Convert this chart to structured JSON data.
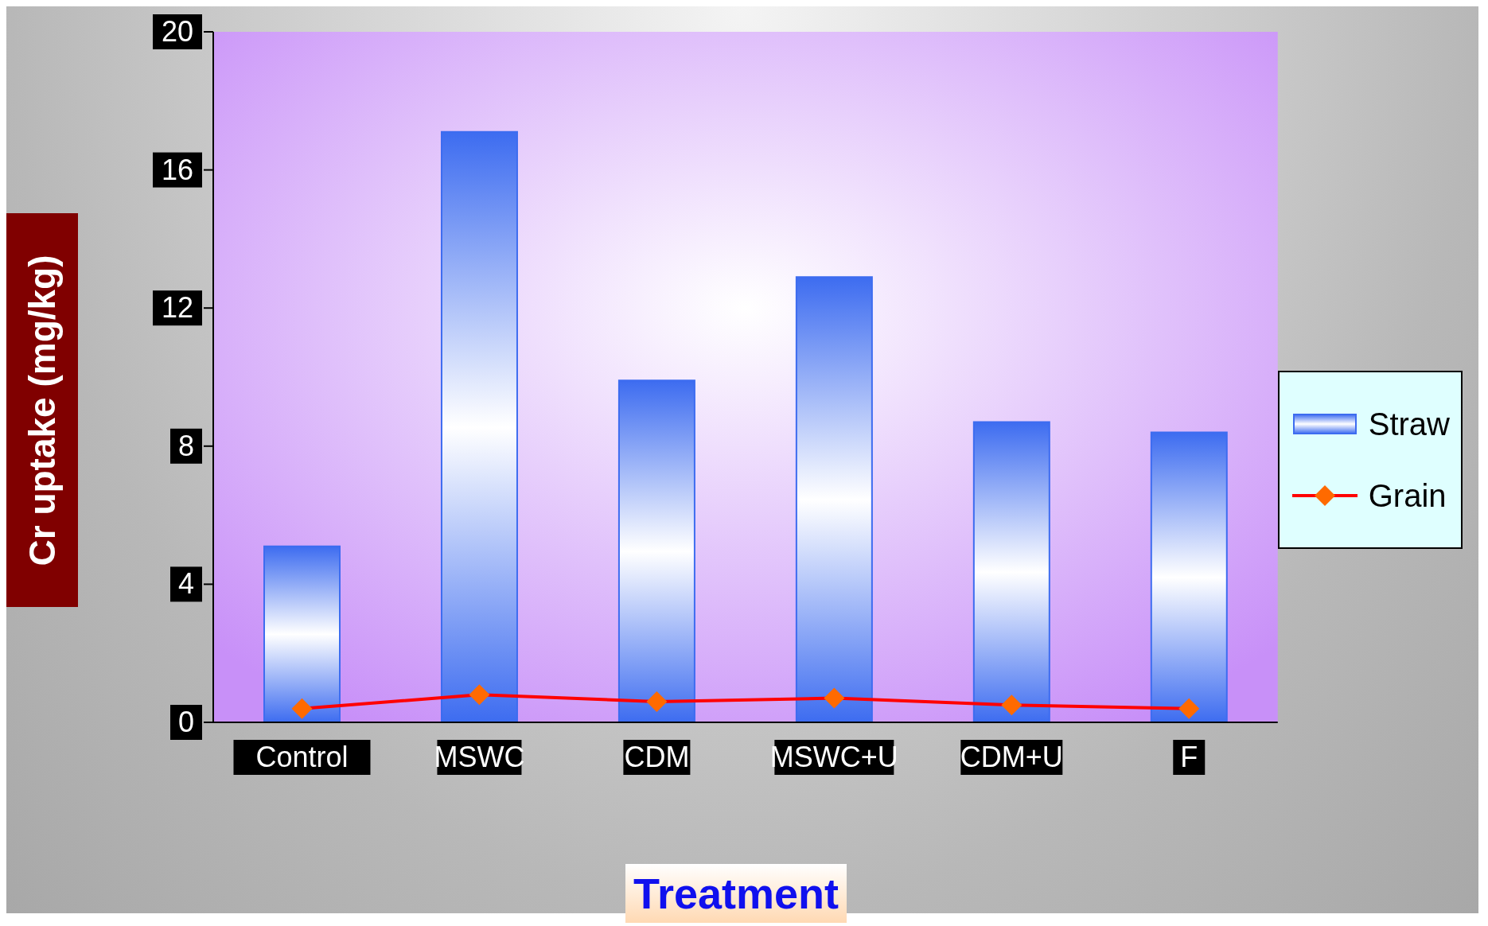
{
  "chart_data": {
    "type": "bar",
    "xlabel": "Treatment",
    "ylabel": "Cr uptake (mg/kg)",
    "categories": [
      "Control",
      "MSWC",
      "CDM",
      "MSWC+U",
      "CDM+U",
      "F"
    ],
    "series": [
      {
        "name": "Straw",
        "color": "#3d6cf0",
        "values": [
          5.1,
          17.1,
          9.9,
          12.9,
          8.7,
          8.4
        ]
      },
      {
        "name": "Grain",
        "type": "line",
        "color": "#ff0000",
        "marker": "diamond",
        "values": [
          0.4,
          0.8,
          0.6,
          0.7,
          0.5,
          0.4
        ]
      }
    ],
    "ylim": [
      0,
      20
    ],
    "yticks": [
      0,
      4,
      8,
      12,
      16,
      20
    ],
    "grid": false,
    "legend": "right"
  }
}
